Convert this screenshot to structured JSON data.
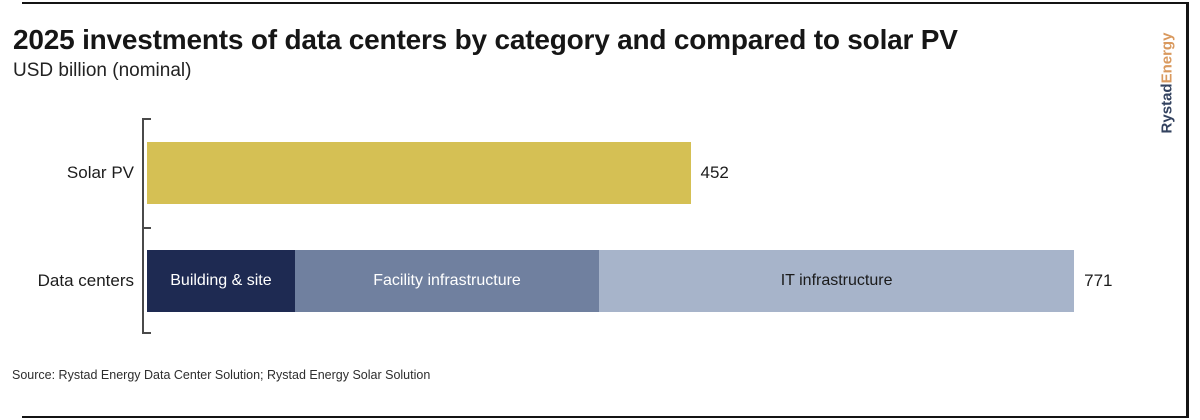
{
  "header": {},
  "logo": {
    "text_primary": "Rystad",
    "text_secondary": "Energy",
    "primary_color": "#33425f",
    "secondary_color": "#d9995e"
  },
  "footer": {
    "source": "Source: Rystad Energy Data Center Solution; Rystad Energy Solar Solution"
  },
  "colors": {
    "solar_pv_bar": "#d5c054",
    "building_site_segment": "#1e2a52",
    "facility_infrastructure_segment": "#70809f",
    "it_infrastructure_segment": "#a7b4ca",
    "axis": "#4a4a4a",
    "text_dark": "#1c1c1c"
  },
  "chart_data": {
    "type": "bar",
    "orientation": "horizontal",
    "stacked": true,
    "title": "2025 investments of data centers by category and compared to solar PV",
    "subtitle": "USD billion (nominal)",
    "unit": "USD billion (nominal)",
    "xlim": [
      0,
      800
    ],
    "grid": false,
    "legend": "none — segment names labeled inside bar segments",
    "categories": [
      "Solar PV",
      "Data centers"
    ],
    "rows": [
      {
        "category": "Solar PV",
        "total": 452,
        "total_label": "452",
        "segments": [
          {
            "name": "",
            "value": 452,
            "color": "#d5c054",
            "label_color": "#1a1a1a"
          }
        ]
      },
      {
        "category": "Data centers",
        "total": 771,
        "total_label": "771",
        "segments": [
          {
            "name": "Building & site",
            "value": 123,
            "color": "#1e2a52",
            "label_color": "#ffffff"
          },
          {
            "name": "Facility infrastructure",
            "value": 253,
            "color": "#70809f",
            "label_color": "#ffffff"
          },
          {
            "name": "IT infrastructure",
            "value": 395,
            "color": "#a7b4ca",
            "label_color": "#1a1a1a"
          }
        ]
      }
    ],
    "notes": "only bar totals (452, 771) carry value labels; segment values estimated from segment widths"
  }
}
